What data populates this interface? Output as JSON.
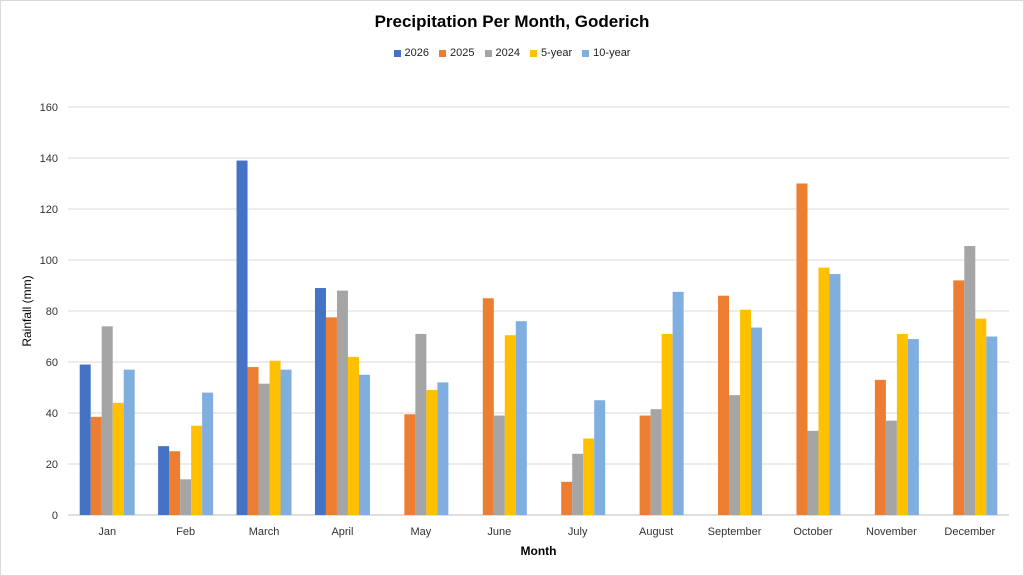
{
  "chart_data": {
    "type": "bar",
    "title": "Precipitation Per Month, Goderich",
    "xlabel": "Month",
    "ylabel": "Rainfall (mm)",
    "ylim": [
      0,
      160
    ],
    "yticks": [
      0,
      20,
      40,
      60,
      80,
      100,
      120,
      140,
      160
    ],
    "grid": true,
    "legend_position": "top",
    "categories": [
      "Jan",
      "Feb",
      "March",
      "April",
      "May",
      "June",
      "July",
      "August",
      "September",
      "October",
      "November",
      "December"
    ],
    "series": [
      {
        "name": "2026",
        "color": "#4472C4",
        "values": [
          59,
          27,
          139,
          89,
          null,
          null,
          null,
          null,
          null,
          null,
          null,
          null
        ]
      },
      {
        "name": "2025",
        "color": "#ED7D31",
        "values": [
          38.5,
          25,
          58,
          77.5,
          39.5,
          85,
          13,
          39,
          86,
          130,
          53,
          92
        ]
      },
      {
        "name": "2024",
        "color": "#A5A5A5",
        "values": [
          74,
          14,
          51.5,
          88,
          71,
          39,
          24,
          41.5,
          47,
          33,
          37,
          105.5
        ]
      },
      {
        "name": "5-year",
        "color": "#FFC000",
        "values": [
          44,
          35,
          60.5,
          62,
          49,
          70.5,
          30,
          71,
          80.5,
          97,
          71,
          77
        ]
      },
      {
        "name": "10-year",
        "color": "#7FAEDF",
        "values": [
          57,
          48,
          57,
          55,
          52,
          76,
          45,
          87.5,
          73.5,
          94.5,
          69,
          70
        ]
      }
    ]
  }
}
